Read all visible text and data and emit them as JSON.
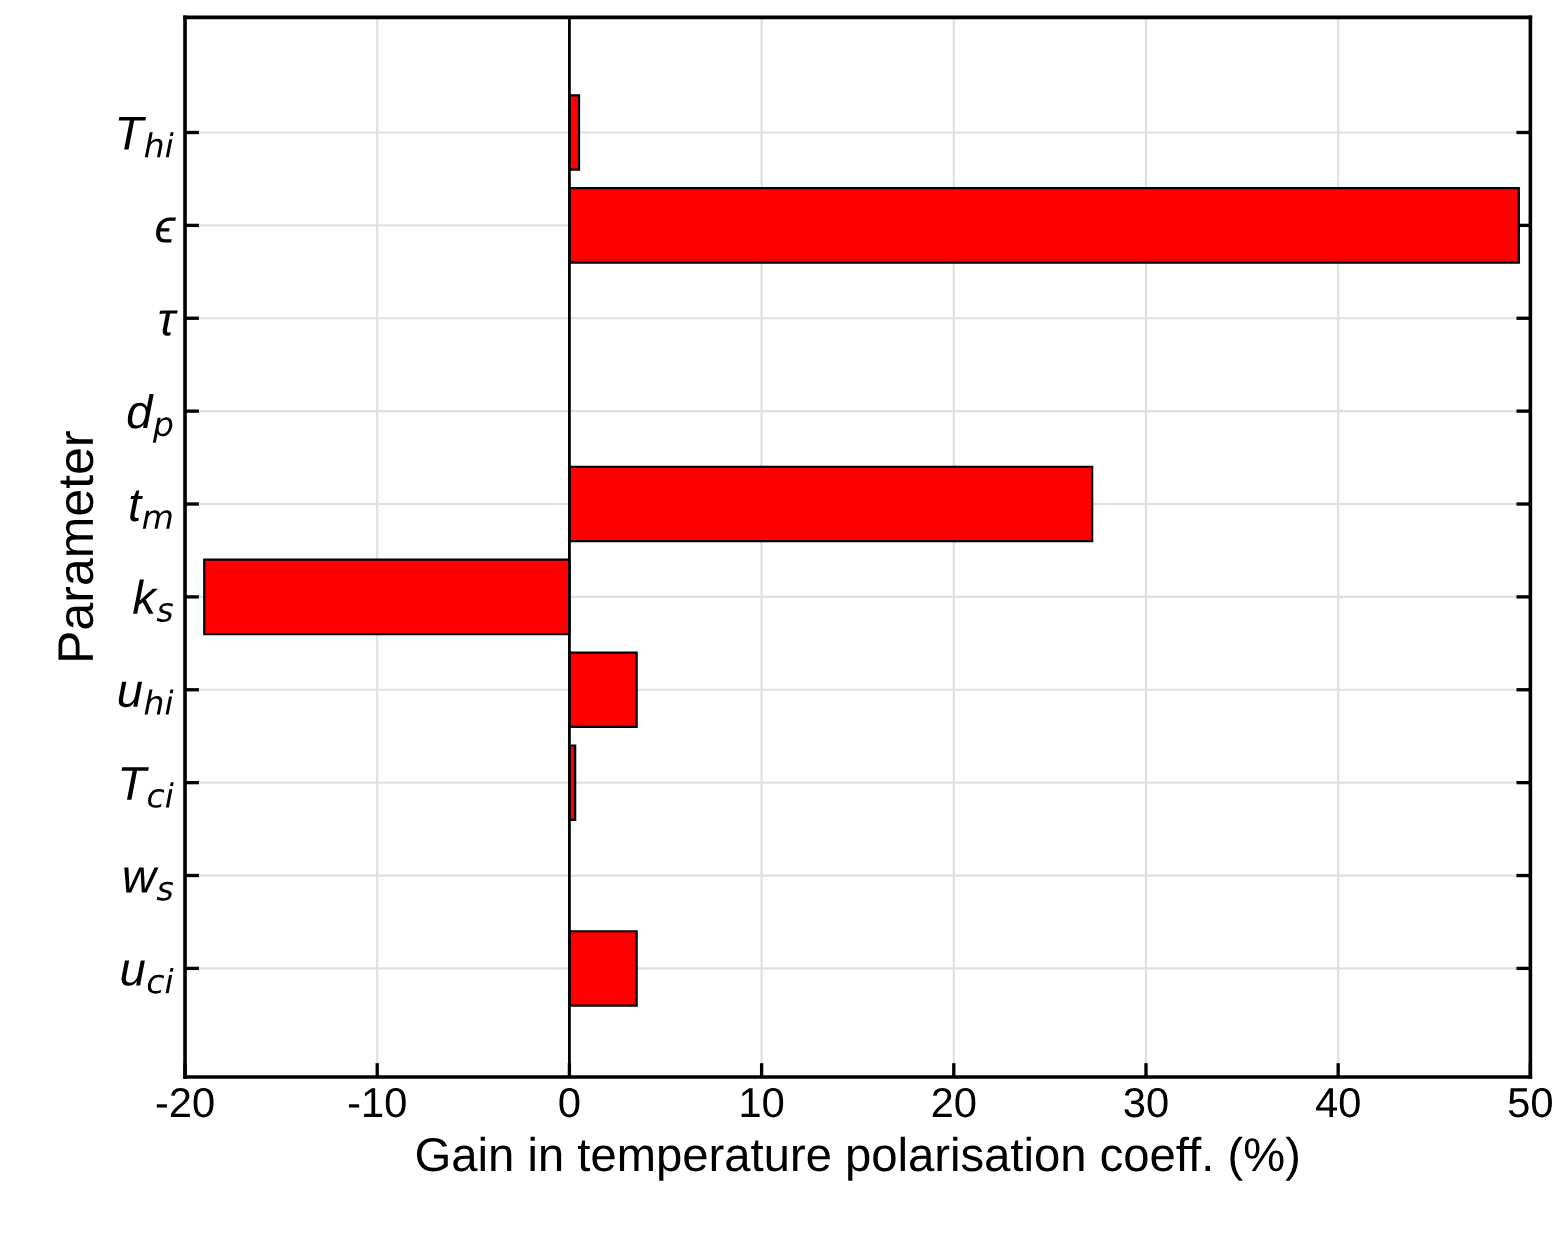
{
  "chart_data": {
    "type": "bar",
    "orientation": "horizontal",
    "categories": [
      "T$_{hi}$",
      "ϵ",
      "τ",
      "d$_{p}$",
      "t$_{m}$",
      "k$_{s}$",
      "u$_{hi}$",
      "T$_{ci}$",
      "w$_{s}$",
      "u$_{ci}$"
    ],
    "values": [
      0.5,
      49.4,
      0,
      0,
      27.2,
      -19.0,
      3.5,
      0.3,
      0,
      3.5
    ],
    "color": "#ff0000",
    "xlim": [
      -20,
      50
    ],
    "xticks": [
      -20,
      -10,
      0,
      10,
      20,
      30,
      40,
      50
    ],
    "xlabel": "Gain in temperature polarisation coeff. (%)",
    "ylabel": "Parameter",
    "ref_lines": [
      {
        "axis": "x",
        "value": 0,
        "color": "#000000"
      }
    ],
    "grid": true
  }
}
